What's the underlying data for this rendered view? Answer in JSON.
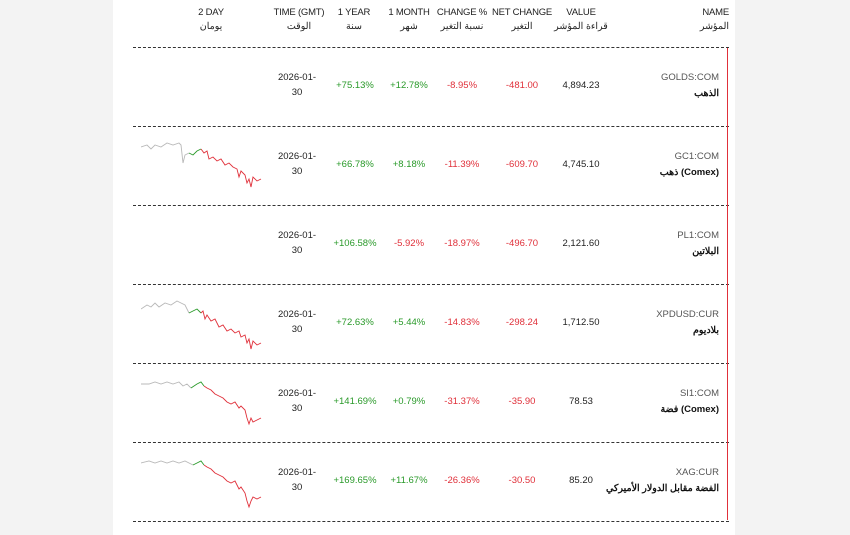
{
  "headers": {
    "chart": {
      "en": "2 DAY",
      "ar": "يومان"
    },
    "time": {
      "en": "TIME (GMT)",
      "ar": "الوقت"
    },
    "year": {
      "en": "1 YEAR",
      "ar": "سنة"
    },
    "month": {
      "en": "1 MONTH",
      "ar": "شهر"
    },
    "change_pct": {
      "en": "CHANGE %",
      "ar": "نسبة التغير"
    },
    "net_change": {
      "en": "NET CHANGE",
      "ar": "التغير"
    },
    "value": {
      "en": "VALUE",
      "ar": "قراءة المؤشر"
    },
    "name": {
      "en": "NAME",
      "ar": "المؤشر"
    }
  },
  "colors": {
    "positive": "#2a9a2a",
    "negative": "#e0303a",
    "accent": "#e0303a"
  },
  "rows": [
    {
      "ticker": "GOLDS:COM",
      "name": "الذهب",
      "value": "4,894.23",
      "net_change": "-481.00",
      "change_pct": "-8.95%",
      "month": "+12.78%",
      "year": "+75.13%",
      "time1": "2026-01-",
      "time2": "30",
      "has_chart": false
    },
    {
      "ticker": "GC1:COM",
      "name": "ذهب (Comex)",
      "value": "4,745.10",
      "net_change": "-609.70",
      "change_pct": "-11.39%",
      "month": "+8.18%",
      "year": "+66.78%",
      "time1": "2026-01-",
      "time2": "30",
      "has_chart": true
    },
    {
      "ticker": "PL1:COM",
      "name": "البلاتين",
      "value": "2,121.60",
      "net_change": "-496.70",
      "change_pct": "-18.97%",
      "month": "-5.92%",
      "year": "+106.58%",
      "time1": "2026-01-",
      "time2": "30",
      "has_chart": false
    },
    {
      "ticker": "XPDUSD:CUR",
      "name": "بلاديوم",
      "value": "1,712.50",
      "net_change": "-298.24",
      "change_pct": "-14.83%",
      "month": "+5.44%",
      "year": "+72.63%",
      "time1": "2026-01-",
      "time2": "30",
      "has_chart": true
    },
    {
      "ticker": "SI1:COM",
      "name": "فضة (Comex)",
      "value": "78.53",
      "net_change": "-35.90",
      "change_pct": "-31.37%",
      "month": "+0.79%",
      "year": "+141.69%",
      "time1": "2026-01-",
      "time2": "30",
      "has_chart": true
    },
    {
      "ticker": "XAG:CUR",
      "name": "الفضة مقابل الدولار الأميركي",
      "value": "85.20",
      "net_change": "-30.50",
      "change_pct": "-26.36%",
      "month": "+11.67%",
      "year": "+169.65%",
      "time1": "2026-01-",
      "time2": "30",
      "has_chart": true
    }
  ]
}
